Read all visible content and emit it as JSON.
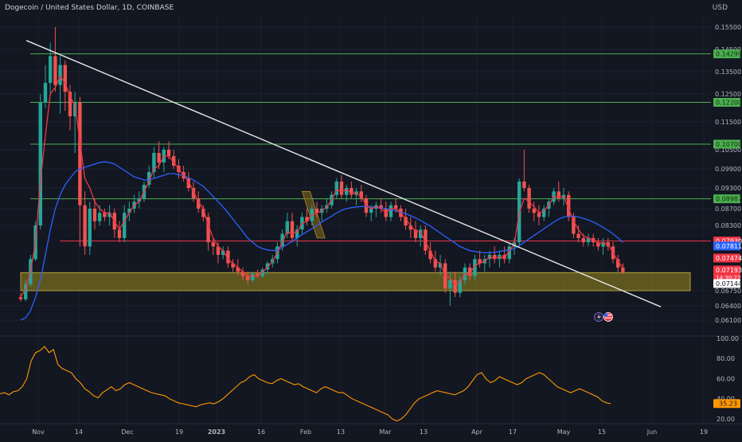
{
  "header": {
    "title": "Dogecoin / United States Dollar, 1D, COINBASE",
    "currency": "USD"
  },
  "chart_data": {
    "type": "candlestick",
    "symbol": "Dogecoin / United States Dollar",
    "interval": "1D",
    "exchange": "COINBASE",
    "price_axis": {
      "ticks": [
        "0.15500",
        "0.14500",
        "0.13500",
        "0.12500",
        "0.11500",
        "0.10500",
        "0.09900",
        "0.09300",
        "0.08700",
        "0.08300",
        "0.06750",
        "0.06400",
        "0.06100"
      ],
      "tick_values": [
        0.155,
        0.145,
        0.135,
        0.125,
        0.115,
        0.105,
        0.099,
        0.093,
        0.087,
        0.083,
        0.0675,
        0.064,
        0.061
      ]
    },
    "time_axis": {
      "labels": [
        "Nov",
        "14",
        "Dec",
        "19",
        "2023",
        "16",
        "Feb",
        "13",
        "Mar",
        "13",
        "Apr",
        "17",
        "May",
        "15",
        "Jun",
        "19"
      ],
      "bold": [
        "2023"
      ]
    },
    "horizontal_levels": [
      {
        "value": 0.14299,
        "label": "0.14299",
        "color": "#4caf50"
      },
      {
        "value": 0.122,
        "label": "0.12200",
        "color": "#4caf50"
      },
      {
        "value": 0.107,
        "label": "0.10700",
        "color": "#4caf50"
      },
      {
        "value": 0.08987,
        "label": "0.08987",
        "color": "#4caf50"
      },
      {
        "value": 0.0793,
        "label": "0.07930",
        "color": "#f23645"
      }
    ],
    "price_labels": [
      {
        "value": 0.07811,
        "label": "0.07811",
        "color": "#2962ff"
      },
      {
        "value": 0.07474,
        "label": "0.07474",
        "color": "#f23645"
      },
      {
        "value": 0.07193,
        "label": "0.07193",
        "sub": "14:30:22",
        "color": "#f23645"
      },
      {
        "value": 0.07144,
        "label": "0.07144",
        "color": "#ffffff"
      }
    ],
    "support_zone": {
      "low": 0.0675,
      "high": 0.0718,
      "color": "#9c8a1e"
    },
    "trendline": {
      "from": {
        "label": "Nov",
        "value": 0.149
      },
      "to": {
        "label": "Jun",
        "value": 0.0638
      }
    },
    "candles": {
      "colors": {
        "up": "#26a69a",
        "down": "#ef5350"
      },
      "ohlc": [
        [
          0.066,
          0.067,
          0.065,
          0.0655
        ],
        [
          0.0655,
          0.07,
          0.065,
          0.069
        ],
        [
          0.069,
          0.076,
          0.0685,
          0.075
        ],
        [
          0.075,
          0.084,
          0.0745,
          0.083
        ],
        [
          0.083,
          0.125,
          0.082,
          0.122
        ],
        [
          0.122,
          0.138,
          0.12,
          0.13
        ],
        [
          0.13,
          0.148,
          0.125,
          0.142
        ],
        [
          0.142,
          0.155,
          0.126,
          0.129
        ],
        [
          0.129,
          0.142,
          0.118,
          0.138
        ],
        [
          0.138,
          0.14,
          0.119,
          0.126
        ],
        [
          0.126,
          0.129,
          0.112,
          0.117
        ],
        [
          0.117,
          0.126,
          0.104,
          0.122
        ],
        [
          0.122,
          0.124,
          0.078,
          0.088
        ],
        [
          0.088,
          0.092,
          0.076,
          0.078
        ],
        [
          0.078,
          0.089,
          0.076,
          0.087
        ],
        [
          0.087,
          0.09,
          0.082,
          0.084
        ],
        [
          0.084,
          0.088,
          0.083,
          0.086
        ],
        [
          0.086,
          0.087,
          0.084,
          0.085
        ],
        [
          0.085,
          0.088,
          0.083,
          0.086
        ],
        [
          0.086,
          0.087,
          0.08,
          0.082
        ],
        [
          0.082,
          0.084,
          0.079,
          0.08
        ],
        [
          0.08,
          0.088,
          0.079,
          0.086
        ],
        [
          0.086,
          0.089,
          0.084,
          0.087
        ],
        [
          0.087,
          0.091,
          0.086,
          0.089
        ],
        [
          0.089,
          0.092,
          0.087,
          0.09
        ],
        [
          0.09,
          0.095,
          0.089,
          0.094
        ],
        [
          0.094,
          0.1,
          0.093,
          0.098
        ],
        [
          0.098,
          0.106,
          0.096,
          0.104
        ],
        [
          0.104,
          0.108,
          0.099,
          0.101
        ],
        [
          0.101,
          0.106,
          0.098,
          0.105
        ],
        [
          0.105,
          0.108,
          0.102,
          0.103
        ],
        [
          0.103,
          0.105,
          0.099,
          0.1
        ],
        [
          0.1,
          0.102,
          0.096,
          0.098
        ],
        [
          0.098,
          0.1,
          0.095,
          0.096
        ],
        [
          0.096,
          0.098,
          0.092,
          0.093
        ],
        [
          0.093,
          0.095,
          0.089,
          0.09
        ],
        [
          0.09,
          0.092,
          0.086,
          0.087
        ],
        [
          0.087,
          0.088,
          0.084,
          0.085
        ],
        [
          0.085,
          0.086,
          0.077,
          0.079
        ],
        [
          0.079,
          0.08,
          0.076,
          0.078
        ],
        [
          0.078,
          0.079,
          0.074,
          0.076
        ],
        [
          0.076,
          0.078,
          0.075,
          0.077
        ],
        [
          0.077,
          0.078,
          0.073,
          0.074
        ],
        [
          0.074,
          0.075,
          0.072,
          0.073
        ],
        [
          0.073,
          0.075,
          0.071,
          0.072
        ],
        [
          0.072,
          0.073,
          0.07,
          0.071
        ],
        [
          0.071,
          0.072,
          0.069,
          0.07
        ],
        [
          0.07,
          0.072,
          0.0695,
          0.0715
        ],
        [
          0.0715,
          0.0725,
          0.0705,
          0.071
        ],
        [
          0.071,
          0.073,
          0.0705,
          0.0725
        ],
        [
          0.0725,
          0.0745,
          0.0715,
          0.074
        ],
        [
          0.074,
          0.076,
          0.073,
          0.075
        ],
        [
          0.075,
          0.079,
          0.074,
          0.078
        ],
        [
          0.078,
          0.082,
          0.077,
          0.081
        ],
        [
          0.081,
          0.086,
          0.08,
          0.084
        ],
        [
          0.084,
          0.086,
          0.079,
          0.08
        ],
        [
          0.08,
          0.083,
          0.078,
          0.082
        ],
        [
          0.082,
          0.086,
          0.081,
          0.085
        ],
        [
          0.085,
          0.087,
          0.083,
          0.084
        ],
        [
          0.084,
          0.088,
          0.083,
          0.087
        ],
        [
          0.087,
          0.089,
          0.085,
          0.086
        ],
        [
          0.086,
          0.088,
          0.084,
          0.087
        ],
        [
          0.087,
          0.09,
          0.086,
          0.088
        ],
        [
          0.088,
          0.092,
          0.087,
          0.091
        ],
        [
          0.091,
          0.096,
          0.09,
          0.095
        ],
        [
          0.095,
          0.097,
          0.09,
          0.091
        ],
        [
          0.091,
          0.094,
          0.089,
          0.093
        ],
        [
          0.093,
          0.095,
          0.09,
          0.091
        ],
        [
          0.091,
          0.093,
          0.088,
          0.092
        ],
        [
          0.092,
          0.094,
          0.089,
          0.09
        ],
        [
          0.09,
          0.091,
          0.085,
          0.086
        ],
        [
          0.086,
          0.088,
          0.084,
          0.087
        ],
        [
          0.087,
          0.089,
          0.085,
          0.088
        ],
        [
          0.088,
          0.09,
          0.086,
          0.087
        ],
        [
          0.087,
          0.089,
          0.084,
          0.085
        ],
        [
          0.085,
          0.089,
          0.084,
          0.088
        ],
        [
          0.088,
          0.09,
          0.086,
          0.087
        ],
        [
          0.087,
          0.088,
          0.084,
          0.085
        ],
        [
          0.085,
          0.087,
          0.082,
          0.083
        ],
        [
          0.083,
          0.085,
          0.08,
          0.082
        ],
        [
          0.082,
          0.084,
          0.079,
          0.08
        ],
        [
          0.08,
          0.083,
          0.078,
          0.082
        ],
        [
          0.082,
          0.083,
          0.076,
          0.077
        ],
        [
          0.077,
          0.079,
          0.074,
          0.075
        ],
        [
          0.075,
          0.077,
          0.072,
          0.073
        ],
        [
          0.073,
          0.076,
          0.071,
          0.074
        ],
        [
          0.074,
          0.075,
          0.067,
          0.068
        ],
        [
          0.068,
          0.072,
          0.064,
          0.07
        ],
        [
          0.07,
          0.072,
          0.066,
          0.067
        ],
        [
          0.067,
          0.071,
          0.066,
          0.07
        ],
        [
          0.07,
          0.074,
          0.069,
          0.073
        ],
        [
          0.073,
          0.074,
          0.07,
          0.071
        ],
        [
          0.071,
          0.076,
          0.07,
          0.075
        ],
        [
          0.075,
          0.077,
          0.073,
          0.074
        ],
        [
          0.074,
          0.076,
          0.072,
          0.075
        ],
        [
          0.075,
          0.077,
          0.073,
          0.076
        ],
        [
          0.076,
          0.078,
          0.074,
          0.075
        ],
        [
          0.075,
          0.077,
          0.073,
          0.076
        ],
        [
          0.076,
          0.078,
          0.074,
          0.075
        ],
        [
          0.075,
          0.079,
          0.074,
          0.078
        ],
        [
          0.078,
          0.08,
          0.076,
          0.079
        ],
        [
          0.079,
          0.096,
          0.078,
          0.095
        ],
        [
          0.095,
          0.105,
          0.092,
          0.093
        ],
        [
          0.093,
          0.094,
          0.086,
          0.087
        ],
        [
          0.087,
          0.089,
          0.084,
          0.086
        ],
        [
          0.086,
          0.088,
          0.083,
          0.085
        ],
        [
          0.085,
          0.088,
          0.084,
          0.087
        ],
        [
          0.087,
          0.09,
          0.085,
          0.089
        ],
        [
          0.089,
          0.093,
          0.088,
          0.092
        ],
        [
          0.092,
          0.095,
          0.089,
          0.09
        ],
        [
          0.09,
          0.093,
          0.088,
          0.091
        ],
        [
          0.091,
          0.092,
          0.084,
          0.085
        ],
        [
          0.085,
          0.086,
          0.08,
          0.081
        ],
        [
          0.081,
          0.083,
          0.079,
          0.08
        ],
        [
          0.08,
          0.081,
          0.078,
          0.079
        ],
        [
          0.079,
          0.081,
          0.078,
          0.08
        ],
        [
          0.08,
          0.081,
          0.078,
          0.079
        ],
        [
          0.079,
          0.08,
          0.077,
          0.078
        ],
        [
          0.078,
          0.08,
          0.076,
          0.079
        ],
        [
          0.079,
          0.08,
          0.077,
          0.078
        ],
        [
          0.078,
          0.079,
          0.074,
          0.075
        ],
        [
          0.075,
          0.076,
          0.072,
          0.073
        ],
        [
          0.073,
          0.074,
          0.0715,
          0.0719
        ]
      ]
    },
    "ma_fast": {
      "color": "#f23645",
      "values": [
        0.066,
        0.068,
        0.072,
        0.079,
        0.095,
        0.11,
        0.125,
        0.128,
        0.133,
        0.13,
        0.124,
        0.121,
        0.108,
        0.096,
        0.093,
        0.089,
        0.087,
        0.086,
        0.086,
        0.084,
        0.082,
        0.084,
        0.086,
        0.088,
        0.089,
        0.092,
        0.095,
        0.099,
        0.1,
        0.103,
        0.103,
        0.101,
        0.099,
        0.097,
        0.095,
        0.092,
        0.089,
        0.087,
        0.083,
        0.08,
        0.078,
        0.077,
        0.075,
        0.074,
        0.073,
        0.072,
        0.071,
        0.071,
        0.071,
        0.072,
        0.073,
        0.0745,
        0.0765,
        0.079,
        0.0815,
        0.081,
        0.0815,
        0.0835,
        0.084,
        0.0855,
        0.086,
        0.0865,
        0.0875,
        0.0895,
        0.0925,
        0.092,
        0.0925,
        0.0915,
        0.0915,
        0.0905,
        0.088,
        0.087,
        0.0875,
        0.087,
        0.086,
        0.087,
        0.087,
        0.086,
        0.0845,
        0.083,
        0.0815,
        0.0815,
        0.079,
        0.077,
        0.0745,
        0.074,
        0.071,
        0.0705,
        0.069,
        0.0695,
        0.0715,
        0.0715,
        0.0735,
        0.074,
        0.0745,
        0.0755,
        0.0752,
        0.0755,
        0.0752,
        0.077,
        0.0785,
        0.086,
        0.09,
        0.089,
        0.0875,
        0.086,
        0.0865,
        0.088,
        0.0905,
        0.0905,
        0.0905,
        0.087,
        0.084,
        0.082,
        0.0805,
        0.08,
        0.0795,
        0.0788,
        0.0788,
        0.0785,
        0.0765,
        0.0745,
        0.073
      ]
    },
    "ma_slow": {
      "color": "#2962ff",
      "values": [
        0.061,
        0.0615,
        0.063,
        0.066,
        0.07,
        0.076,
        0.082,
        0.087,
        0.091,
        0.094,
        0.096,
        0.098,
        0.099,
        0.0995,
        0.1,
        0.1005,
        0.101,
        0.1012,
        0.101,
        0.1005,
        0.0995,
        0.0985,
        0.0975,
        0.0965,
        0.096,
        0.0955,
        0.0955,
        0.096,
        0.0965,
        0.097,
        0.0975,
        0.0975,
        0.0972,
        0.0968,
        0.0962,
        0.0955,
        0.0945,
        0.0935,
        0.092,
        0.0905,
        0.089,
        0.0875,
        0.086,
        0.0845,
        0.083,
        0.0815,
        0.08,
        0.079,
        0.078,
        0.0775,
        0.0772,
        0.077,
        0.0772,
        0.0778,
        0.0785,
        0.0792,
        0.08,
        0.0808,
        0.0815,
        0.0822,
        0.083,
        0.0838,
        0.0845,
        0.0852,
        0.086,
        0.0866,
        0.087,
        0.0873,
        0.0875,
        0.0876,
        0.0876,
        0.0875,
        0.0874,
        0.0872,
        0.087,
        0.0868,
        0.0865,
        0.0862,
        0.0858,
        0.0853,
        0.0848,
        0.0842,
        0.0835,
        0.0828,
        0.082,
        0.0812,
        0.0804,
        0.0796,
        0.0788,
        0.078,
        0.0775,
        0.077,
        0.0768,
        0.0766,
        0.0765,
        0.0765,
        0.0766,
        0.0768,
        0.077,
        0.0772,
        0.0775,
        0.0782,
        0.079,
        0.0798,
        0.0806,
        0.0814,
        0.0822,
        0.083,
        0.0838,
        0.0845,
        0.085,
        0.0852,
        0.0852,
        0.085,
        0.0847,
        0.0843,
        0.0838,
        0.0832,
        0.0825,
        0.0818,
        0.081,
        0.08,
        0.079
      ]
    },
    "highlight_box": {
      "from_index": 57,
      "to_index": 61,
      "top": 0.092,
      "bottom": 0.08,
      "color": "#8a6d1a"
    },
    "rsi": {
      "color": "#ff9800",
      "ticks": [
        "100.00",
        "80.00",
        "60.00",
        "40.00",
        "20.00"
      ],
      "tick_values": [
        100,
        80,
        60,
        40,
        20
      ],
      "ylim": [
        16,
        100
      ],
      "current": 35.23,
      "current_label": "35.23",
      "values": [
        45,
        46,
        44,
        47,
        48,
        52,
        60,
        78,
        86,
        88,
        92,
        86,
        89,
        74,
        70,
        68,
        66,
        60,
        56,
        50,
        47,
        43,
        41,
        46,
        49,
        52,
        48,
        50,
        54,
        56,
        54,
        52,
        50,
        48,
        46,
        45,
        44,
        43,
        40,
        38,
        36,
        35,
        34,
        33,
        32,
        34,
        35,
        36,
        35,
        37,
        40,
        44,
        48,
        52,
        56,
        58,
        62,
        64,
        60,
        58,
        56,
        55,
        58,
        60,
        58,
        56,
        54,
        55,
        52,
        50,
        48,
        46,
        50,
        52,
        50,
        48,
        46,
        46,
        43,
        40,
        38,
        36,
        34,
        32,
        30,
        28,
        26,
        24,
        20,
        18,
        20,
        24,
        30,
        36,
        40,
        42,
        44,
        46,
        48,
        47,
        46,
        45,
        44,
        46,
        48,
        52,
        58,
        64,
        66,
        60,
        56,
        58,
        62,
        60,
        58,
        56,
        54,
        56,
        60,
        62,
        64,
        66,
        64,
        60,
        56,
        52,
        50,
        48,
        46,
        48,
        50,
        48,
        46,
        44,
        42,
        38,
        36,
        35
      ]
    },
    "icons": [
      "lightning-icon",
      "us-flag-icon"
    ]
  }
}
